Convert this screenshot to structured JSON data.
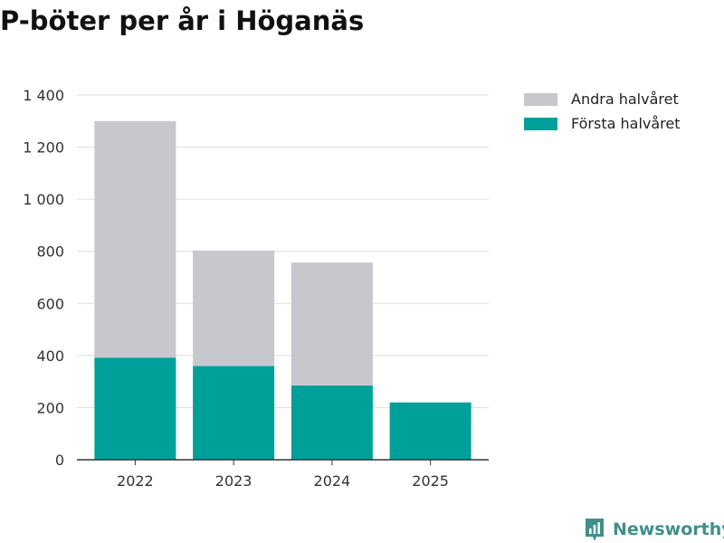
{
  "header": {
    "title": "P-böter per år i Höganäs"
  },
  "legend": {
    "items": [
      {
        "label": "Andra halvåret",
        "color": "#c7c7ce"
      },
      {
        "label": "Första halvåret",
        "color": "#00a09a"
      }
    ]
  },
  "brand": {
    "name": "Newsworthy",
    "icon": "newsworthy-logo-icon"
  },
  "chart_data": {
    "type": "bar",
    "stacked": true,
    "title": "P-böter per år i Höganäs",
    "xlabel": "",
    "ylabel": "",
    "categories": [
      "2022",
      "2023",
      "2024",
      "2025"
    ],
    "series": [
      {
        "name": "Första halvåret",
        "color": "#00a09a",
        "values": [
          392,
          360,
          285,
          220
        ]
      },
      {
        "name": "Andra halvåret",
        "color": "#c7c7ce",
        "values": [
          908,
          443,
          472,
          0
        ]
      }
    ],
    "ylim": [
      0,
      1400
    ],
    "yticks": [
      {
        "value": 0,
        "label": "0"
      },
      {
        "value": 200,
        "label": "200"
      },
      {
        "value": 400,
        "label": "400"
      },
      {
        "value": 600,
        "label": "600"
      },
      {
        "value": 800,
        "label": "800"
      },
      {
        "value": 1000,
        "label": "1 000"
      },
      {
        "value": 1200,
        "label": "1 200"
      },
      {
        "value": 1400,
        "label": "1 400"
      }
    ],
    "grid": true,
    "legend_position": "top-right"
  }
}
